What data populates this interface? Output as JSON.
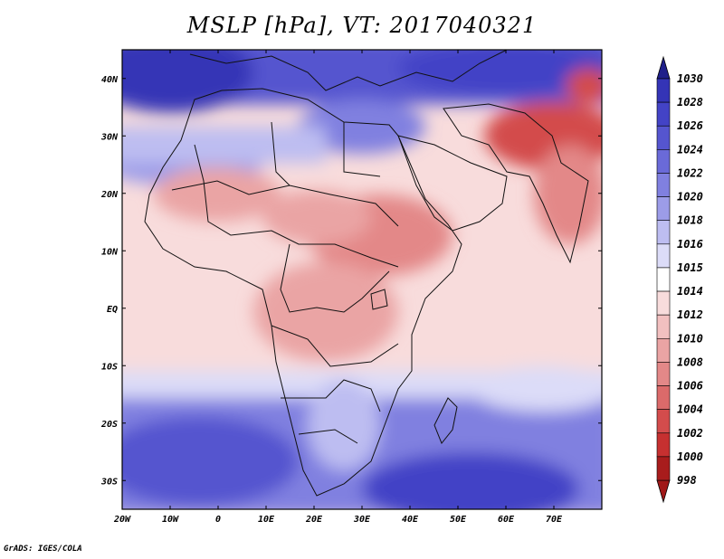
{
  "title": "MSLP [hPa], VT: 2017040321",
  "credit": "GrADS: IGES/COLA",
  "map": {
    "region": "Africa",
    "lon_range": [
      -20,
      80
    ],
    "lat_range": [
      -35,
      45
    ],
    "lon_ticks": [
      "20W",
      "10W",
      "0",
      "10E",
      "20E",
      "30E",
      "40E",
      "50E",
      "60E",
      "70E"
    ],
    "lat_ticks": [
      "40N",
      "30N",
      "20N",
      "10N",
      "EQ",
      "10S",
      "20S",
      "30S"
    ]
  },
  "colorbar": {
    "labels": [
      "1030",
      "1028",
      "1026",
      "1024",
      "1022",
      "1020",
      "1018",
      "1016",
      "1015",
      "1014",
      "1012",
      "1010",
      "1008",
      "1006",
      "1004",
      "1002",
      "1000",
      "998"
    ],
    "colors": [
      "#2a2a9e",
      "#3434b6",
      "#4343c6",
      "#5555cf",
      "#6a6ad8",
      "#8080e0",
      "#9c9ce8",
      "#bdbdf1",
      "#dcdcf8",
      "#ffffff",
      "#f8dcdc",
      "#f2c0c0",
      "#eaa4a4",
      "#e38888",
      "#db6a6a",
      "#d34c4c",
      "#c63030",
      "#a81c1c"
    ],
    "top_arrow_color": "#1f1f8a",
    "bottom_arrow_color": "#a01818"
  }
}
